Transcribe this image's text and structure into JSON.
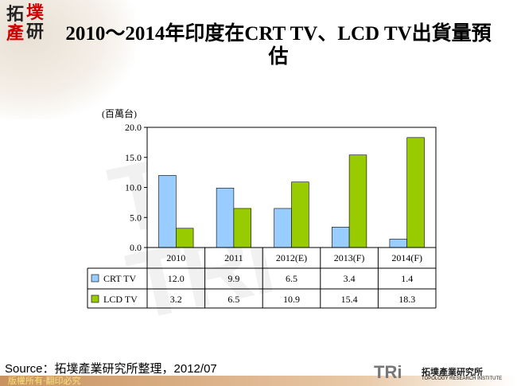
{
  "title": "2010～2014年印度在CRT TV、LCD TV出貨量預估",
  "logo": {
    "chars": [
      "拓",
      "墣",
      "產",
      "研"
    ]
  },
  "chart_data": {
    "type": "bar",
    "title": "2010～2014年印度在CRT TV、LCD TV出貨量預估",
    "unit_label": "(百萬台)",
    "categories": [
      "2010",
      "2011",
      "2012(E)",
      "2013(F)",
      "2014(F)"
    ],
    "series": [
      {
        "name": "CRT TV",
        "values": [
          12.0,
          9.9,
          6.5,
          3.4,
          1.4
        ],
        "labels": [
          "12.0",
          "9.9",
          "6.5",
          "3.4",
          "1.4"
        ],
        "color": "#99ccff"
      },
      {
        "name": "LCD TV",
        "values": [
          3.2,
          6.5,
          10.9,
          15.4,
          18.3
        ],
        "labels": [
          "3.2",
          "6.5",
          "10.9",
          "15.4",
          "18.3"
        ],
        "color": "#99cc00"
      }
    ],
    "ylim": [
      0,
      20
    ],
    "yticks": [
      "0.0",
      "5.0",
      "10.0",
      "15.0",
      "20.0"
    ],
    "grid": false,
    "legend": "data-table"
  },
  "source": "Source：拓墣產業研究所整理，2012/07",
  "footer": {
    "copyright": "版權所有‧翻印必究",
    "brand": "TRi",
    "brand_cn": "拓墣產業研究所",
    "brand_en": "TOPOLOGY RESEARCH INSTITUTE"
  }
}
